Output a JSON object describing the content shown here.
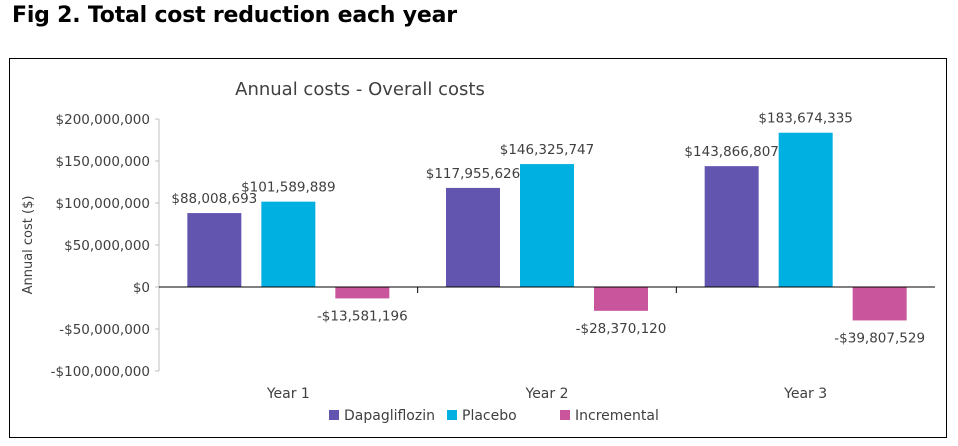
{
  "figure_title": "Fig 2. Total cost reduction each year",
  "chart_data": {
    "type": "bar",
    "title": "Annual costs - Overall costs",
    "xlabel": "",
    "ylabel": "Annual cost ($)",
    "ylim": [
      -100000000,
      200000000
    ],
    "yticks": [
      200000000,
      150000000,
      100000000,
      50000000,
      0,
      -50000000,
      -100000000
    ],
    "ytick_labels": [
      "$200,000,000",
      "$150,000,000",
      "$100,000,000",
      "$50,000,000",
      "$0",
      "-$50,000,000",
      "-$100,000,000"
    ],
    "categories": [
      "Year 1",
      "Year 2",
      "Year 3"
    ],
    "series": [
      {
        "name": "Dapagliflozin",
        "color": "#6155B0",
        "values": [
          88008693,
          117955626,
          143866807
        ],
        "labels": [
          "$88,008,693",
          "$117,955,626",
          "$143,866,807"
        ]
      },
      {
        "name": "Placebo",
        "color": "#00B0E0",
        "values": [
          101589889,
          146325747,
          183674335
        ],
        "labels": [
          "$101,589,889",
          "$146,325,747",
          "$183,674,335"
        ]
      },
      {
        "name": "Incremental",
        "color": "#C9559C",
        "values": [
          -13581196,
          -28370120,
          -39807529
        ],
        "labels": [
          "-$13,581,196",
          "-$28,370,120",
          "-$39,807,529"
        ]
      }
    ],
    "grid": false,
    "legend_position": "bottom"
  }
}
